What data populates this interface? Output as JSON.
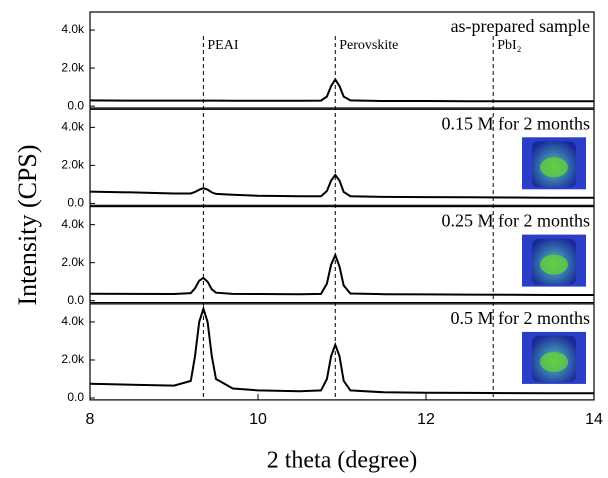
{
  "axes": {
    "xlabel": "2 theta (degree)",
    "ylabel": "Intensity (CPS)",
    "xlim": [
      8,
      14
    ],
    "xticks": [
      8,
      10,
      12,
      14
    ],
    "reference_lines": [
      {
        "x": 9.35,
        "label": "PEAI"
      },
      {
        "x": 10.92,
        "label": "Perovskite"
      },
      {
        "x": 12.8,
        "label": "PbI₂"
      }
    ]
  },
  "chart_data": [
    {
      "type": "line",
      "title": "as-prepared sample",
      "x": [
        8,
        8.5,
        9,
        9.2,
        9.25,
        9.3,
        9.35,
        9.4,
        9.45,
        9.5,
        9.7,
        10,
        10.5,
        10.75,
        10.82,
        10.87,
        10.92,
        10.97,
        11.02,
        11.1,
        11.5,
        12,
        12.5,
        13,
        13.5,
        14
      ],
      "series": [
        {
          "color": "#000000",
          "values": [
            300,
            290,
            290,
            290,
            290,
            290,
            290,
            290,
            290,
            290,
            280,
            280,
            280,
            290,
            500,
            1050,
            1400,
            1050,
            500,
            300,
            270,
            270,
            260,
            260,
            250,
            250
          ]
        }
      ],
      "ylim": [
        -100,
        4950
      ],
      "yticks": [
        {
          "value": 0,
          "label": "0.0"
        },
        {
          "value": 2000,
          "label": "2.0k"
        },
        {
          "value": 4000,
          "label": "4.0k"
        }
      ]
    },
    {
      "type": "line",
      "title": "0.15 M for 2 months",
      "x": [
        8,
        8.5,
        9,
        9.2,
        9.25,
        9.3,
        9.35,
        9.4,
        9.45,
        9.5,
        9.7,
        10,
        10.5,
        10.75,
        10.82,
        10.87,
        10.92,
        10.97,
        11.02,
        11.1,
        11.5,
        12,
        12.5,
        13,
        13.5,
        14
      ],
      "series": [
        {
          "color": "#000000",
          "values": [
            620,
            580,
            520,
            520,
            600,
            720,
            800,
            720,
            580,
            500,
            450,
            400,
            380,
            380,
            650,
            1200,
            1500,
            1200,
            600,
            380,
            340,
            330,
            320,
            310,
            300,
            300
          ]
        }
      ],
      "ylim": [
        -100,
        4950
      ],
      "yticks": [
        {
          "value": 0,
          "label": "0.0"
        },
        {
          "value": 2000,
          "label": "2.0k"
        },
        {
          "value": 4000,
          "label": "4.0k"
        }
      ]
    },
    {
      "type": "line",
      "title": "0.25 M for 2 months",
      "x": [
        8,
        8.5,
        9,
        9.2,
        9.25,
        9.3,
        9.35,
        9.4,
        9.45,
        9.5,
        9.7,
        10,
        10.5,
        10.75,
        10.82,
        10.87,
        10.92,
        10.97,
        11.02,
        11.1,
        11.5,
        12,
        12.5,
        13,
        13.5,
        14
      ],
      "series": [
        {
          "color": "#000000",
          "values": [
            370,
            360,
            350,
            400,
            650,
            1050,
            1200,
            1000,
            600,
            420,
            360,
            350,
            340,
            360,
            900,
            1900,
            2400,
            1800,
            800,
            380,
            340,
            330,
            320,
            310,
            300,
            300
          ]
        }
      ],
      "ylim": [
        -100,
        4950
      ],
      "yticks": [
        {
          "value": 0,
          "label": "0.0"
        },
        {
          "value": 2000,
          "label": "2.0k"
        },
        {
          "value": 4000,
          "label": "4.0k"
        }
      ]
    },
    {
      "type": "line",
      "title": "0.5 M for 2 months",
      "x": [
        8,
        8.5,
        9,
        9.2,
        9.25,
        9.3,
        9.35,
        9.4,
        9.45,
        9.5,
        9.7,
        10,
        10.5,
        10.75,
        10.82,
        10.87,
        10.92,
        10.97,
        11.02,
        11.1,
        11.5,
        12,
        12.5,
        13,
        13.5,
        14
      ],
      "series": [
        {
          "color": "#000000",
          "values": [
            750,
            700,
            650,
            900,
            2200,
            4000,
            4700,
            4000,
            2200,
            1000,
            500,
            400,
            350,
            400,
            1000,
            2200,
            2800,
            2200,
            900,
            400,
            300,
            280,
            270,
            260,
            250,
            250
          ]
        }
      ],
      "ylim": [
        -100,
        4950
      ],
      "yticks": [
        {
          "value": 0,
          "label": "0.0"
        },
        {
          "value": 2000,
          "label": "2.0k"
        },
        {
          "value": 4000,
          "label": "4.0k"
        }
      ]
    }
  ]
}
